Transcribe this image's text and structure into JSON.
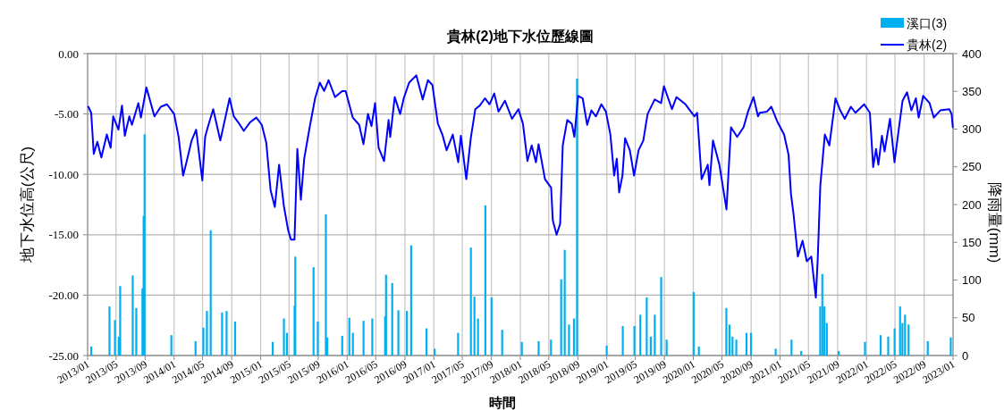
{
  "chart_data": {
    "type": "line",
    "title": "貴林(2)地下水位歷線圖",
    "xlabel": "時間",
    "ylabel": "地下水位高(公尺)",
    "y2label": "降雨量(mm)",
    "xlim": [
      "2013-01",
      "2023-01"
    ],
    "xticks": [
      {
        "value": "2013-01",
        "label": "2013/01"
      },
      {
        "value": "2013-05",
        "label": "2013/05"
      },
      {
        "value": "2013-09",
        "label": "2013/09"
      },
      {
        "value": "2014-01",
        "label": "2014/01"
      },
      {
        "value": "2014-05",
        "label": "2014/05"
      },
      {
        "value": "2014-09",
        "label": "2014/09"
      },
      {
        "value": "2015-01",
        "label": "2015/01"
      },
      {
        "value": "2015-05",
        "label": "2015/05"
      },
      {
        "value": "2015-09",
        "label": "2015/09"
      },
      {
        "value": "2016-01",
        "label": "2016/01"
      },
      {
        "value": "2016-05",
        "label": "2016/05"
      },
      {
        "value": "2016-09",
        "label": "2016/09"
      },
      {
        "value": "2017-01",
        "label": "2017/01"
      },
      {
        "value": "2017-05",
        "label": "2017/05"
      },
      {
        "value": "2017-09",
        "label": "2017/09"
      },
      {
        "value": "2018-01",
        "label": "2018/01"
      },
      {
        "value": "2018-05",
        "label": "2018/05"
      },
      {
        "value": "2018-09",
        "label": "2018/09"
      },
      {
        "value": "2019-01",
        "label": "2019/01"
      },
      {
        "value": "2019-05",
        "label": "2019/05"
      },
      {
        "value": "2019-09",
        "label": "2019/09"
      },
      {
        "value": "2020-01",
        "label": "2020/01"
      },
      {
        "value": "2020-05",
        "label": "2020/05"
      },
      {
        "value": "2020-09",
        "label": "2020/09"
      },
      {
        "value": "2021-01",
        "label": "2021/01"
      },
      {
        "value": "2021-05",
        "label": "2021/05"
      },
      {
        "value": "2021-09",
        "label": "2021/09"
      },
      {
        "value": "2022-01",
        "label": "2022/01"
      },
      {
        "value": "2022-05",
        "label": "2022/05"
      },
      {
        "value": "2022-09",
        "label": "2022/09"
      },
      {
        "value": "2023-01",
        "label": "2023/01"
      }
    ],
    "ylim": [
      -25,
      0
    ],
    "yticks": [
      {
        "value": -25,
        "label": "-25.00"
      },
      {
        "value": -20,
        "label": "-20.00"
      },
      {
        "value": -15,
        "label": "-15.00"
      },
      {
        "value": -10,
        "label": "-10.00"
      },
      {
        "value": -5,
        "label": "-5.00"
      },
      {
        "value": 0,
        "label": "0.00"
      }
    ],
    "y2lim": [
      0,
      400
    ],
    "y2ticks": [
      0,
      50,
      100,
      150,
      200,
      250,
      300,
      350,
      400
    ],
    "grid": true,
    "legend": "top right",
    "series": [
      {
        "name": "溪口(3)",
        "type": "bar",
        "axis": "y2",
        "color": "#00b0f0",
        "x": [
          "2013-01-16",
          "2013-04-03",
          "2013-04-26",
          "2013-05-12",
          "2013-05-18",
          "2013-07-10",
          "2013-07-25",
          "2013-08-20",
          "2013-08-25",
          "2013-08-29",
          "2013-12-20",
          "2014-04-01",
          "2014-05-04",
          "2014-05-19",
          "2014-06-04",
          "2014-07-22",
          "2014-08-10",
          "2014-09-15",
          "2015-02-21",
          "2015-04-09",
          "2015-04-22",
          "2015-05-24",
          "2015-05-27",
          "2015-08-12",
          "2015-08-30",
          "2015-10-03",
          "2015-10-09",
          "2015-12-11",
          "2016-01-10",
          "2016-01-25",
          "2016-03-10",
          "2016-04-16",
          "2016-06-09",
          "2016-06-13",
          "2016-07-09",
          "2016-08-04",
          "2016-09-09",
          "2016-09-27",
          "2016-12-01",
          "2017-01-04",
          "2017-04-13",
          "2017-06-06",
          "2017-06-21",
          "2017-07-06",
          "2017-08-06",
          "2017-09-01",
          "2017-10-16",
          "2018-01-07",
          "2018-03-19",
          "2018-05-10",
          "2018-06-22",
          "2018-07-07",
          "2018-07-25",
          "2018-08-15",
          "2018-08-28",
          "2018-12-31",
          "2019-03-09",
          "2019-04-27",
          "2019-05-22",
          "2019-06-18",
          "2019-07-05",
          "2019-07-22",
          "2019-08-18",
          "2019-09-10",
          "2020-01-02",
          "2020-01-24",
          "2020-05-19",
          "2020-06-01",
          "2020-06-14",
          "2020-06-30",
          "2020-08-12",
          "2020-08-31",
          "2020-12-13",
          "2021-02-18",
          "2021-03-31",
          "2021-06-19",
          "2021-06-28",
          "2021-07-07",
          "2021-07-17",
          "2021-09-05",
          "2021-12-25",
          "2022-03-01",
          "2022-04-02",
          "2022-04-29",
          "2022-05-22",
          "2022-06-01",
          "2022-06-12",
          "2022-06-27",
          "2022-09-16",
          "2022-12-22"
        ],
        "values": [
          12,
          65,
          47,
          25,
          92,
          106,
          63,
          89,
          185,
          293,
          27,
          19,
          37,
          59,
          166,
          57,
          59,
          45,
          18,
          49,
          30,
          66,
          131,
          117,
          45,
          187,
          24,
          26,
          50,
          30,
          46,
          49,
          52,
          107,
          96,
          60,
          59,
          146,
          36,
          9,
          30,
          143,
          78,
          49,
          199,
          77,
          34,
          18,
          19,
          21,
          101,
          140,
          41,
          49,
          367,
          13,
          39,
          39,
          54,
          77,
          25,
          54,
          104,
          21,
          84,
          12,
          63,
          41,
          25,
          21,
          30,
          30,
          9,
          21,
          6,
          65,
          108,
          65,
          43,
          6,
          18,
          27,
          25,
          36,
          65,
          43,
          54,
          41,
          19,
          24
        ]
      },
      {
        "name": "貴林(2)",
        "color": "#0000ff",
        "x": [
          "2013-01-04",
          "2013-01-16",
          "2013-01-27",
          "2013-02-11",
          "2013-02-28",
          "2013-03-23",
          "2013-04-08",
          "2013-04-19",
          "2013-05-11",
          "2013-05-26",
          "2013-06-07",
          "2013-06-26",
          "2013-07-07",
          "2013-08-03",
          "2013-08-14",
          "2013-09-06",
          "2013-10-10",
          "2013-11-06",
          "2013-12-02",
          "2014-01-01",
          "2014-01-20",
          "2014-02-08",
          "2014-02-22",
          "2014-03-16",
          "2014-04-04",
          "2014-04-30",
          "2014-05-12",
          "2014-05-23",
          "2014-06-15",
          "2014-07-15",
          "2014-08-23",
          "2014-09-10",
          "2014-09-29",
          "2014-10-22",
          "2014-11-17",
          "2014-12-14",
          "2015-01-06",
          "2015-01-25",
          "2015-02-12",
          "2015-03-02",
          "2015-03-20",
          "2015-04-09",
          "2015-04-27",
          "2015-05-09",
          "2015-05-24",
          "2015-06-05",
          "2015-06-20",
          "2015-07-04",
          "2015-07-27",
          "2015-08-19",
          "2015-09-08",
          "2015-09-26",
          "2015-10-15",
          "2015-11-11",
          "2015-12-11",
          "2015-12-26",
          "2016-01-25",
          "2016-02-21",
          "2016-03-10",
          "2016-03-29",
          "2016-04-13",
          "2016-04-28",
          "2016-05-13",
          "2016-06-05",
          "2016-06-24",
          "2016-07-01",
          "2016-07-20",
          "2016-08-12",
          "2016-08-27",
          "2016-09-19",
          "2016-10-19",
          "2016-11-15",
          "2016-12-07",
          "2016-12-26",
          "2017-01-18",
          "2017-02-06",
          "2017-02-24",
          "2017-03-22",
          "2017-04-14",
          "2017-04-25",
          "2017-05-18",
          "2017-06-06",
          "2017-06-25",
          "2017-07-14",
          "2017-08-05",
          "2017-08-24",
          "2017-09-13",
          "2017-10-01",
          "2017-10-28",
          "2017-11-27",
          "2017-12-24",
          "2018-01-12",
          "2018-01-31",
          "2018-02-18",
          "2018-03-08",
          "2018-03-19",
          "2018-04-15",
          "2018-05-11",
          "2018-05-18",
          "2018-06-03",
          "2018-06-18",
          "2018-06-29",
          "2018-07-18",
          "2018-08-06",
          "2018-08-17",
          "2018-09-02",
          "2018-09-21",
          "2018-10-10",
          "2018-10-28",
          "2018-11-16",
          "2018-12-09",
          "2018-12-28",
          "2019-01-16",
          "2019-02-01",
          "2019-02-12",
          "2019-02-22",
          "2019-03-08",
          "2019-03-19",
          "2019-04-08",
          "2019-04-26",
          "2019-05-15",
          "2019-06-04",
          "2019-06-22",
          "2019-07-22",
          "2019-08-18",
          "2019-08-30",
          "2019-10-03",
          "2019-10-22",
          "2019-11-29",
          "2020-01-06",
          "2020-01-17",
          "2020-02-05",
          "2020-03-02",
          "2020-03-09",
          "2020-03-24",
          "2020-04-20",
          "2020-05-20",
          "2020-06-08",
          "2020-07-04",
          "2020-07-31",
          "2020-08-19",
          "2020-09-11",
          "2020-09-30",
          "2020-10-07",
          "2020-11-07",
          "2020-11-25",
          "2020-12-22",
          "2021-01-18",
          "2021-02-06",
          "2021-02-16",
          "2021-02-27",
          "2021-03-17",
          "2021-04-06",
          "2021-04-24",
          "2021-05-13",
          "2021-06-01",
          "2021-06-09",
          "2021-06-20",
          "2021-07-09",
          "2021-07-28",
          "2021-08-23",
          "2021-09-12",
          "2021-10-01",
          "2021-10-27",
          "2021-11-15",
          "2021-12-22",
          "2022-01-15",
          "2022-01-29",
          "2022-02-10",
          "2022-02-20",
          "2022-03-07",
          "2022-03-18",
          "2022-04-10",
          "2022-04-29",
          "2022-05-14",
          "2022-06-02",
          "2022-06-21",
          "2022-07-09",
          "2022-07-28",
          "2022-08-09",
          "2022-08-28",
          "2022-09-24",
          "2022-10-12",
          "2022-11-08",
          "2022-12-16",
          "2022-12-26",
          "2022-12-31"
        ],
        "values": [
          -4.4,
          -4.9,
          -8.3,
          -7.3,
          -8.6,
          -6.7,
          -7.8,
          -5.2,
          -6.3,
          -4.3,
          -6.8,
          -5.2,
          -5.9,
          -4.1,
          -5.3,
          -2.8,
          -5.2,
          -4.4,
          -4.2,
          -5.0,
          -6.9,
          -10.1,
          -9.0,
          -7.2,
          -6.3,
          -10.5,
          -6.9,
          -6.1,
          -4.6,
          -7.2,
          -3.7,
          -5.2,
          -5.7,
          -6.4,
          -5.7,
          -5.3,
          -5.9,
          -7.4,
          -11.3,
          -12.7,
          -9.2,
          -12.6,
          -14.6,
          -15.4,
          -15.4,
          -7.9,
          -12.1,
          -8.7,
          -6.1,
          -3.7,
          -2.4,
          -3.1,
          -2.2,
          -3.6,
          -3.1,
          -3.1,
          -5.3,
          -5.9,
          -7.5,
          -5.0,
          -6.0,
          -4.1,
          -7.8,
          -8.9,
          -5.5,
          -6.9,
          -3.6,
          -5.0,
          -3.7,
          -2.4,
          -1.8,
          -3.8,
          -2.2,
          -2.6,
          -5.8,
          -6.7,
          -8.0,
          -6.7,
          -9.0,
          -6.8,
          -10.4,
          -7.0,
          -4.6,
          -4.3,
          -3.7,
          -4.2,
          -3.3,
          -4.8,
          -3.9,
          -5.4,
          -4.6,
          -5.8,
          -8.9,
          -7.6,
          -9.0,
          -7.5,
          -10.4,
          -11.1,
          -13.8,
          -15.0,
          -14.1,
          -7.6,
          -5.5,
          -5.8,
          -6.9,
          -3.5,
          -3.7,
          -5.9,
          -4.7,
          -5.2,
          -4.2,
          -4.8,
          -6.7,
          -10.1,
          -8.7,
          -11.5,
          -10.1,
          -7.0,
          -8.0,
          -10.1,
          -8.0,
          -7.2,
          -5.0,
          -3.8,
          -4.1,
          -2.7,
          -4.6,
          -3.6,
          -4.2,
          -5.2,
          -4.9,
          -10.4,
          -9.2,
          -10.9,
          -7.2,
          -9.2,
          -12.9,
          -6.1,
          -6.9,
          -6.1,
          -4.8,
          -3.6,
          -5.2,
          -4.9,
          -4.8,
          -4.4,
          -5.7,
          -6.7,
          -8.4,
          -11.6,
          -13.3,
          -16.8,
          -15.5,
          -17.2,
          -16.8,
          -20.2,
          -17.0,
          -10.9,
          -6.7,
          -7.6,
          -3.7,
          -4.7,
          -5.4,
          -4.4,
          -4.9,
          -4.2,
          -4.9,
          -9.4,
          -7.9,
          -9.2,
          -6.8,
          -8.1,
          -5.4,
          -9.0,
          -6.7,
          -3.9,
          -3.2,
          -4.7,
          -3.7,
          -5.3,
          -3.5,
          -4.1,
          -5.3,
          -4.7,
          -4.6,
          -5.0,
          -6.1
        ]
      }
    ]
  }
}
